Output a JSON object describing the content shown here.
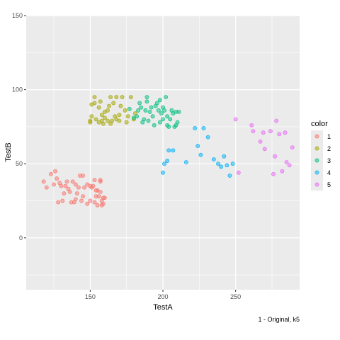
{
  "chart_data": {
    "type": "scatter",
    "xlabel": "TestA",
    "ylabel": "TestB",
    "caption": "1 - Original, k5",
    "xlim": [
      106,
      294
    ],
    "ylim": [
      -35,
      150
    ],
    "x_ticks": [
      150,
      200,
      250
    ],
    "y_ticks": [
      0,
      50,
      100,
      150
    ],
    "grid": true,
    "legend": {
      "title": "color",
      "placement": "right",
      "entries": [
        "1",
        "2",
        "3",
        "4",
        "5"
      ]
    },
    "colors": {
      "1": "#F8766D",
      "2": "#A3A500",
      "3": "#00BF7D",
      "4": "#00B0F6",
      "5": "#E76BF3"
    },
    "series": [
      {
        "name": "1",
        "points": [
          [
            118,
            38
          ],
          [
            120,
            34
          ],
          [
            123,
            43
          ],
          [
            125,
            36
          ],
          [
            126,
            45
          ],
          [
            127,
            40
          ],
          [
            129,
            37
          ],
          [
            128,
            24
          ],
          [
            131,
            25
          ],
          [
            130,
            35
          ],
          [
            133,
            35
          ],
          [
            134,
            38
          ],
          [
            135,
            33
          ],
          [
            136,
            31
          ],
          [
            137,
            24
          ],
          [
            138,
            38
          ],
          [
            139,
            24
          ],
          [
            140,
            36
          ],
          [
            141,
            30
          ],
          [
            142,
            34
          ],
          [
            143,
            42
          ],
          [
            144,
            25
          ],
          [
            145,
            28
          ],
          [
            145,
            42
          ],
          [
            146,
            34
          ],
          [
            148,
            36
          ],
          [
            148,
            23
          ],
          [
            150,
            35
          ],
          [
            151,
            34
          ],
          [
            150,
            25
          ],
          [
            152,
            35
          ],
          [
            153,
            24
          ],
          [
            153,
            39
          ],
          [
            154,
            28
          ],
          [
            154,
            32
          ],
          [
            155,
            32
          ],
          [
            155,
            22
          ],
          [
            156,
            28
          ],
          [
            157,
            39
          ],
          [
            157,
            38
          ],
          [
            157,
            31
          ],
          [
            158,
            25
          ],
          [
            158,
            22
          ],
          [
            159,
            27
          ],
          [
            160,
            27
          ],
          [
            159,
            23
          ],
          [
            140,
            26
          ],
          [
            132,
            30
          ]
        ]
      },
      {
        "name": "2",
        "points": [
          [
            150,
            79
          ],
          [
            150,
            78
          ],
          [
            151,
            82
          ],
          [
            151,
            90
          ],
          [
            153,
            91
          ],
          [
            153,
            95
          ],
          [
            154,
            80
          ],
          [
            156,
            88
          ],
          [
            156,
            78
          ],
          [
            157,
            92
          ],
          [
            158,
            83
          ],
          [
            158,
            79
          ],
          [
            159,
            77
          ],
          [
            160,
            85
          ],
          [
            160,
            81
          ],
          [
            162,
            86
          ],
          [
            162,
            79
          ],
          [
            163,
            89
          ],
          [
            164,
            95
          ],
          [
            164,
            77
          ],
          [
            165,
            79
          ],
          [
            166,
            91
          ],
          [
            167,
            82
          ],
          [
            168,
            95
          ],
          [
            168,
            80
          ],
          [
            170,
            79
          ],
          [
            170,
            83
          ],
          [
            171,
            89
          ],
          [
            172,
            95
          ],
          [
            174,
            86
          ],
          [
            175,
            78
          ],
          [
            176,
            82
          ],
          [
            178,
            95
          ],
          [
            180,
            80
          ],
          [
            181,
            84
          ]
        ]
      },
      {
        "name": "3",
        "points": [
          [
            177,
            87
          ],
          [
            180,
            81
          ],
          [
            182,
            82
          ],
          [
            184,
            91
          ],
          [
            185,
            88
          ],
          [
            186,
            78
          ],
          [
            187,
            80
          ],
          [
            188,
            86
          ],
          [
            189,
            92
          ],
          [
            190,
            79
          ],
          [
            191,
            85
          ],
          [
            192,
            88
          ],
          [
            193,
            82
          ],
          [
            194,
            76
          ],
          [
            195,
            89
          ],
          [
            196,
            91
          ],
          [
            197,
            86
          ],
          [
            198,
            78
          ],
          [
            198,
            93
          ],
          [
            199,
            84
          ],
          [
            200,
            80
          ],
          [
            200,
            88
          ],
          [
            201,
            86
          ],
          [
            202,
            95
          ],
          [
            203,
            82
          ],
          [
            203,
            76
          ],
          [
            204,
            75
          ],
          [
            205,
            80
          ],
          [
            206,
            86
          ],
          [
            207,
            84
          ],
          [
            208,
            75
          ],
          [
            209,
            76
          ],
          [
            209,
            85
          ],
          [
            210,
            78
          ],
          [
            211,
            85
          ],
          [
            189,
            95
          ],
          [
            183,
            86
          ]
        ]
      },
      {
        "name": "4",
        "points": [
          [
            200,
            44
          ],
          [
            201,
            50
          ],
          [
            203,
            52
          ],
          [
            204,
            59
          ],
          [
            207,
            59
          ],
          [
            216,
            51
          ],
          [
            222,
            74
          ],
          [
            224,
            62
          ],
          [
            226,
            56
          ],
          [
            228,
            74
          ],
          [
            231,
            68
          ],
          [
            235,
            53
          ],
          [
            238,
            50
          ],
          [
            240,
            48
          ],
          [
            242,
            55
          ],
          [
            244,
            49
          ],
          [
            246,
            42
          ],
          [
            248,
            50
          ]
        ]
      },
      {
        "name": "5",
        "points": [
          [
            250,
            80
          ],
          [
            252,
            44
          ],
          [
            261,
            76
          ],
          [
            262,
            72
          ],
          [
            267,
            65
          ],
          [
            269,
            71
          ],
          [
            270,
            60
          ],
          [
            274,
            72
          ],
          [
            276,
            43
          ],
          [
            277,
            55
          ],
          [
            278,
            79
          ],
          [
            280,
            70
          ],
          [
            282,
            45
          ],
          [
            284,
            71
          ],
          [
            285,
            51
          ],
          [
            287,
            49
          ],
          [
            289,
            61
          ]
        ]
      }
    ]
  }
}
